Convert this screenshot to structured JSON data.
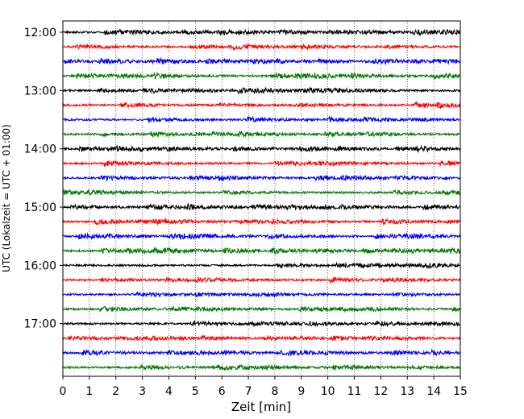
{
  "chart_data": {
    "type": "line",
    "title": "",
    "xlabel": "Zeit  [min]",
    "ylabel": "UTC (Lokalzeit = UTC + 01:00)",
    "xlim": [
      0,
      15
    ],
    "x_ticks": [
      0,
      1,
      2,
      3,
      4,
      5,
      6,
      7,
      8,
      9,
      10,
      11,
      12,
      13,
      14,
      15
    ],
    "x_tick_labels": [
      "0",
      "1",
      "2",
      "3",
      "4",
      "5",
      "6",
      "7",
      "8",
      "9",
      "10",
      "11",
      "12",
      "13",
      "14",
      "15"
    ],
    "grid": "vertical-dotted",
    "row_start": "12:00",
    "row_interval_min": 15,
    "y_tick_labels": [
      "12:00",
      "13:00",
      "14:00",
      "15:00",
      "16:00",
      "17:00"
    ],
    "trace_colors": [
      "#000000",
      "#ff0000",
      "#0000ff",
      "#007700"
    ],
    "series": [
      {
        "start": "12:00",
        "color": "#000000"
      },
      {
        "start": "12:15",
        "color": "#ff0000"
      },
      {
        "start": "12:30",
        "color": "#0000ff"
      },
      {
        "start": "12:45",
        "color": "#007700"
      },
      {
        "start": "13:00",
        "color": "#000000"
      },
      {
        "start": "13:15",
        "color": "#ff0000"
      },
      {
        "start": "13:30",
        "color": "#0000ff"
      },
      {
        "start": "13:45",
        "color": "#007700"
      },
      {
        "start": "14:00",
        "color": "#000000"
      },
      {
        "start": "14:15",
        "color": "#ff0000"
      },
      {
        "start": "14:30",
        "color": "#0000ff"
      },
      {
        "start": "14:45",
        "color": "#007700"
      },
      {
        "start": "15:00",
        "color": "#000000"
      },
      {
        "start": "15:15",
        "color": "#ff0000"
      },
      {
        "start": "15:30",
        "color": "#0000ff"
      },
      {
        "start": "15:45",
        "color": "#007700"
      },
      {
        "start": "16:00",
        "color": "#000000"
      },
      {
        "start": "16:15",
        "color": "#ff0000"
      },
      {
        "start": "16:30",
        "color": "#0000ff"
      },
      {
        "start": "16:45",
        "color": "#007700"
      },
      {
        "start": "17:00",
        "color": "#000000"
      },
      {
        "start": "17:15",
        "color": "#ff0000"
      },
      {
        "start": "17:30",
        "color": "#0000ff"
      },
      {
        "start": "17:45",
        "color": "#007700"
      }
    ]
  }
}
